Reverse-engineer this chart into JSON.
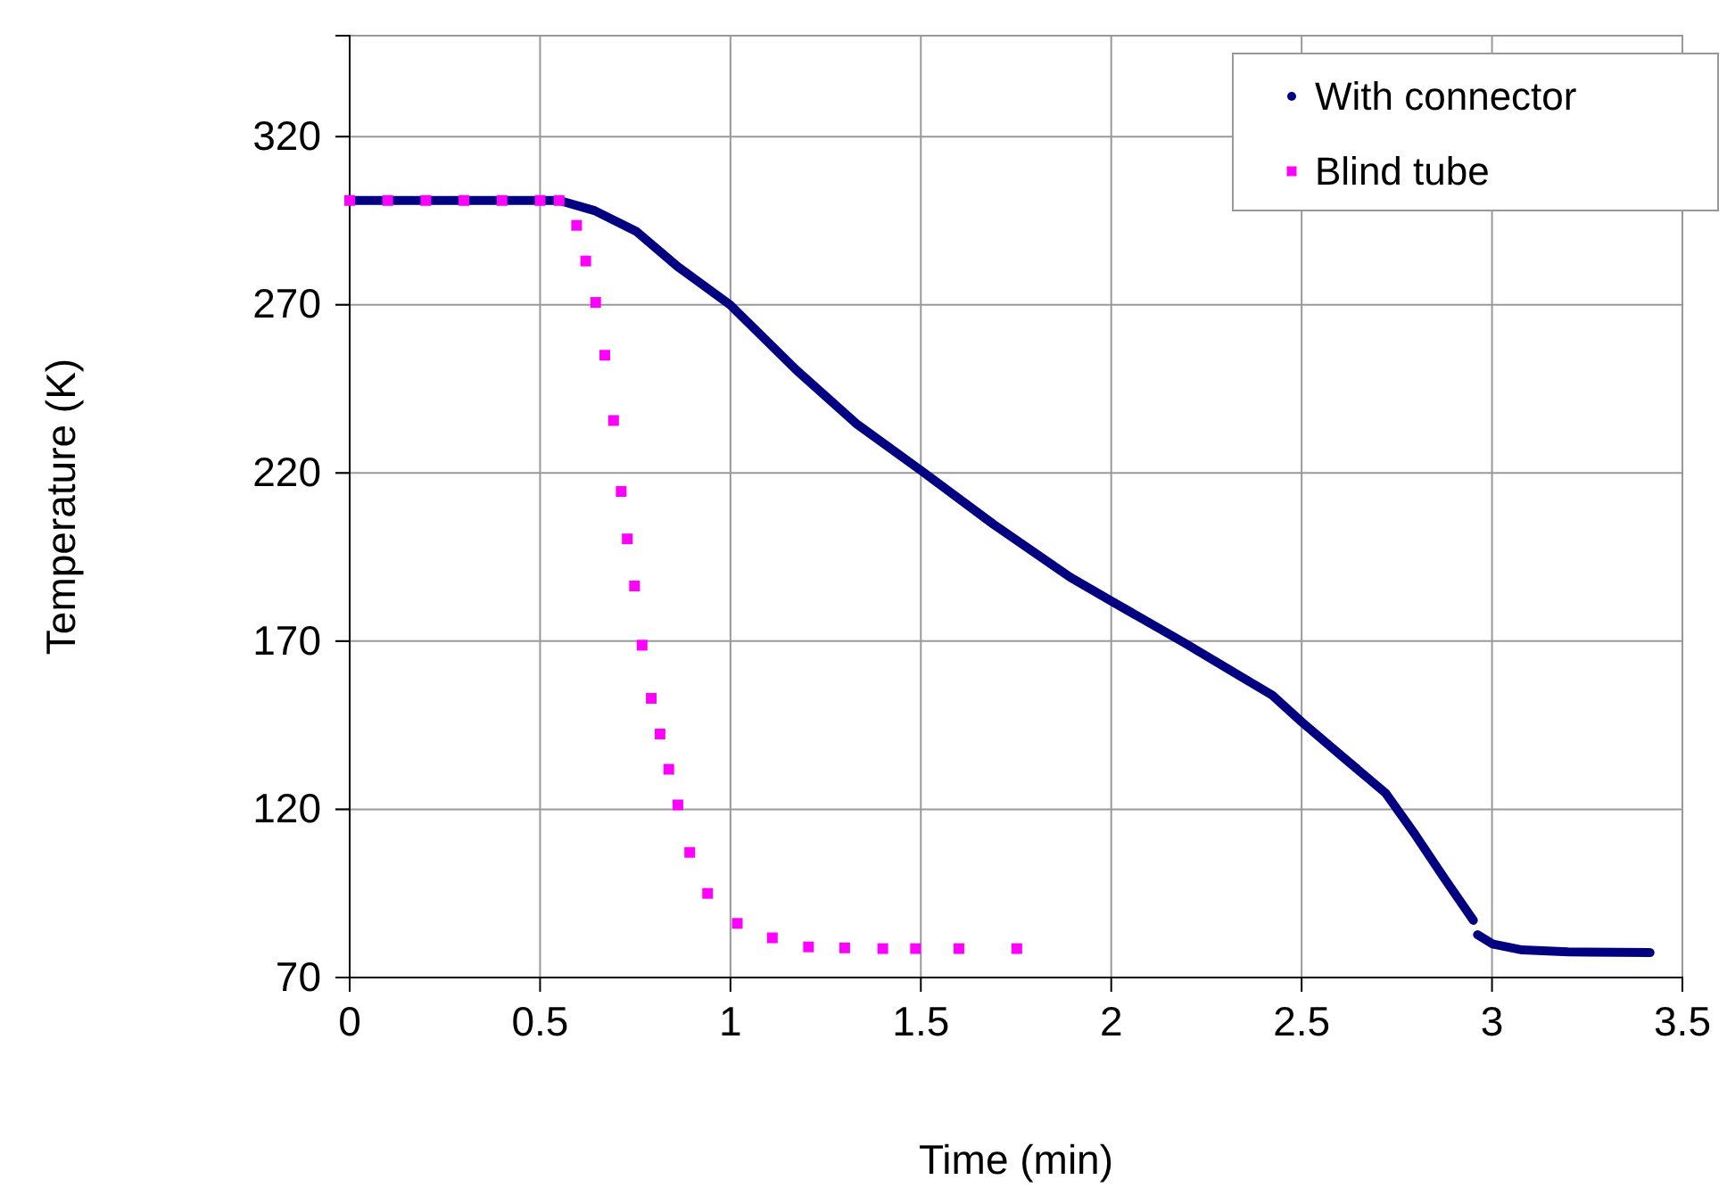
{
  "chart_data": {
    "type": "scatter",
    "xlabel": "Time (min)",
    "ylabel": "Temperature (K)",
    "xlim": [
      0,
      3.5
    ],
    "xticks": [
      0,
      0.5,
      1,
      1.5,
      2,
      2.5,
      3,
      3.5
    ],
    "ylim": [
      70,
      350
    ],
    "yticks": [
      70,
      120,
      170,
      220,
      270,
      320
    ],
    "grid": true,
    "legend": "top right",
    "series": [
      {
        "name": "With connector",
        "color": "#000080",
        "type": "line",
        "marker": "none",
        "x": [
          0,
          0.2,
          0.4,
          0.55,
          0.643,
          0.753,
          0.862,
          0.999,
          1.174,
          1.33,
          1.502,
          1.69,
          1.892,
          1.999,
          2.189,
          2.423,
          2.501,
          2.61,
          2.72,
          2.798,
          2.876,
          2.951,
          2.956,
          2.962,
          3.001,
          3.079,
          3.2,
          3.415
        ],
        "values": [
          301,
          301,
          301,
          301,
          298,
          291.8,
          281.3,
          270,
          250.5,
          234.7,
          220.6,
          204.8,
          189,
          182,
          169.7,
          153.9,
          145.9,
          135.4,
          124.9,
          112.5,
          99.3,
          87,
          null,
          82.7,
          80,
          78.2,
          77.6,
          77.4
        ]
      },
      {
        "name": "Blind tube",
        "color": "#ff00ff",
        "marker": "square",
        "x": [
          0,
          0.1,
          0.2,
          0.3,
          0.4,
          0.5,
          0.55,
          0.596,
          0.62,
          0.646,
          0.67,
          0.693,
          0.713,
          0.729,
          0.748,
          0.768,
          0.792,
          0.815,
          0.838,
          0.862,
          0.893,
          0.94,
          1.018,
          1.11,
          1.205,
          1.3,
          1.4,
          1.486,
          1.6,
          1.752
        ],
        "values": [
          301,
          301,
          301,
          301,
          301,
          301,
          301,
          293.6,
          283,
          270.7,
          255,
          235.6,
          214.5,
          200.4,
          186.4,
          168.8,
          153,
          142.4,
          131.9,
          121.3,
          107.2,
          95,
          86.1,
          81.8,
          79.1,
          78.8,
          78.6,
          78.6,
          78.6,
          78.6
        ]
      }
    ]
  }
}
